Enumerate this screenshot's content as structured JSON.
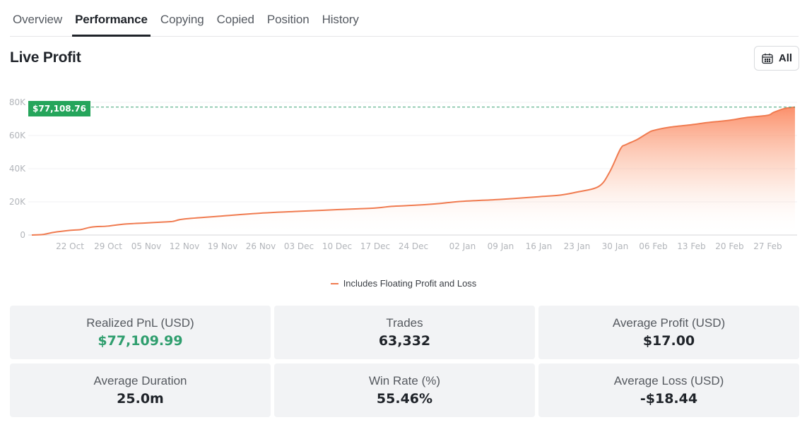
{
  "tabs": [
    {
      "label": "Overview",
      "active": false
    },
    {
      "label": "Performance",
      "active": true
    },
    {
      "label": "Copying",
      "active": false
    },
    {
      "label": "Copied",
      "active": false
    },
    {
      "label": "Position",
      "active": false
    },
    {
      "label": "History",
      "active": false
    }
  ],
  "section": {
    "title": "Live Profit",
    "range_button": {
      "icon": "calendar-icon",
      "label": "All"
    }
  },
  "chart": {
    "current_value_label": "$77,108.76",
    "legend_label": "Includes Floating Profit and Loss"
  },
  "colors": {
    "line": "#f07b50",
    "fill_top": "#fb8a63",
    "reference_line": "#3aa072",
    "price_tag_bg": "#25a55b",
    "positive_value": "#2f9e6e"
  },
  "stats": [
    {
      "label": "Realized PnL (USD)",
      "value": "$77,109.99",
      "tone": "positive"
    },
    {
      "label": "Trades",
      "value": "63,332",
      "tone": "neutral"
    },
    {
      "label": "Average Profit (USD)",
      "value": "$17.00",
      "tone": "neutral"
    },
    {
      "label": "Average Duration",
      "value": "25.0m",
      "tone": "neutral"
    },
    {
      "label": "Win Rate (%)",
      "value": "55.46%",
      "tone": "neutral"
    },
    {
      "label": "Average Loss (USD)",
      "value": "-$18.44",
      "tone": "neutral"
    }
  ],
  "chart_data": {
    "type": "area",
    "title": "Live Profit",
    "xlabel": "",
    "ylabel": "",
    "ylim": [
      0,
      80000
    ],
    "yticks": [
      0,
      20000,
      40000,
      60000,
      80000
    ],
    "ytick_labels": [
      "0",
      "20K",
      "40K",
      "60K",
      "80K"
    ],
    "xtick_labels": [
      "22 Oct",
      "29 Oct",
      "05 Nov",
      "12 Nov",
      "19 Nov",
      "26 Nov",
      "03 Dec",
      "10 Dec",
      "17 Dec",
      "24 Dec",
      "02 Jan",
      "09 Jan",
      "16 Jan",
      "23 Jan",
      "30 Jan",
      "06 Feb",
      "13 Feb",
      "20 Feb",
      "27 Feb"
    ],
    "grid": true,
    "legend_position": "bottom",
    "reference_line": {
      "value": 77108.76,
      "label": "$77,108.76",
      "style": "dashed"
    },
    "series": [
      {
        "name": "Includes Floating Profit and Loss",
        "x": [
          "15 Oct",
          "17 Oct",
          "19 Oct",
          "22 Oct",
          "24 Oct",
          "26 Oct",
          "29 Oct",
          "01 Nov",
          "05 Nov",
          "09 Nov",
          "10 Nov",
          "12 Nov",
          "19 Nov",
          "26 Nov",
          "03 Dec",
          "10 Dec",
          "17 Dec",
          "20 Dec",
          "24 Dec",
          "28 Dec",
          "02 Jan",
          "09 Jan",
          "16 Jan",
          "20 Jan",
          "23 Jan",
          "27 Jan",
          "29 Jan",
          "31 Jan",
          "01 Feb",
          "03 Feb",
          "05 Feb",
          "06 Feb",
          "09 Feb",
          "13 Feb",
          "16 Feb",
          "20 Feb",
          "23 Feb",
          "27 Feb",
          "28 Feb",
          "01 Mar",
          "03 Mar"
        ],
        "values": [
          0,
          300,
          1600,
          2800,
          3300,
          4800,
          5400,
          6600,
          7300,
          8000,
          8300,
          9700,
          11500,
          13200,
          14300,
          15300,
          16300,
          17300,
          17900,
          18800,
          20300,
          21500,
          23100,
          24100,
          25900,
          29300,
          38000,
          52000,
          54500,
          57500,
          61500,
          63000,
          65000,
          66500,
          67800,
          69200,
          70800,
          72200,
          73800,
          76200,
          77108.76
        ]
      }
    ]
  }
}
